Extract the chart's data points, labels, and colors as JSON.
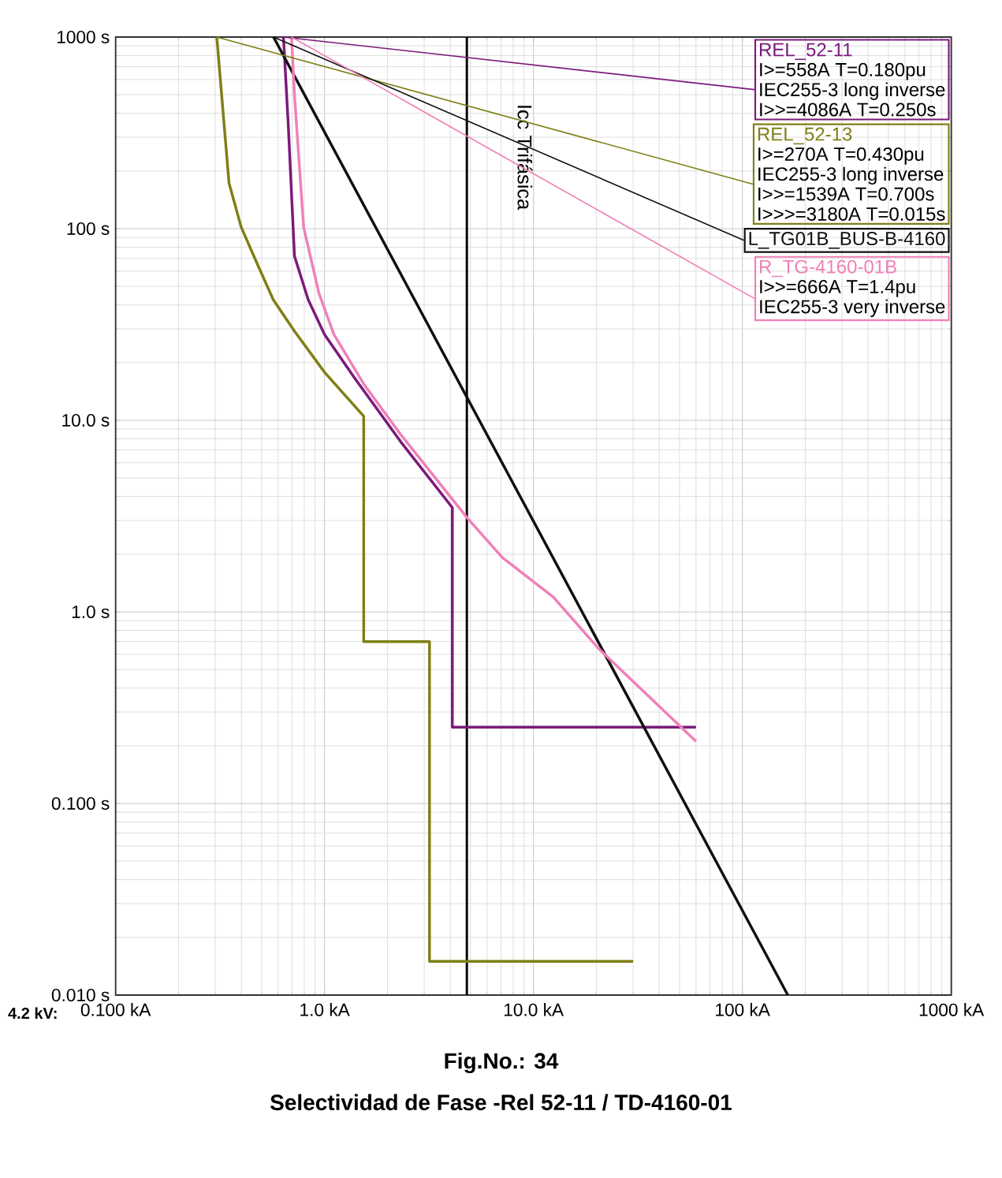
{
  "chart_data": {
    "type": "line",
    "title": "Fig.No.: 34",
    "subtitle": "Selectividad de Fase -Rel 52-11 / TD-4160-01",
    "xlabel": "4.2 kV:",
    "log": "xy",
    "grid": true,
    "marker": "none",
    "line_style": "solid",
    "xlim": [
      0.1,
      1000
    ],
    "ylim": [
      0.01,
      1000
    ],
    "xticks": [
      {
        "value": 0.1,
        "label": "0.100 kA"
      },
      {
        "value": 1,
        "label": "1.0 kA"
      },
      {
        "value": 10,
        "label": "10.0 kA"
      },
      {
        "value": 100,
        "label": "100 kA"
      },
      {
        "value": 1000,
        "label": "1000 kA"
      }
    ],
    "yticks": [
      {
        "value": 0.01,
        "label": "0.010 s"
      },
      {
        "value": 0.1,
        "label": "0.100 s"
      },
      {
        "value": 1,
        "label": "1.0 s"
      },
      {
        "value": 10,
        "label": "10.0 s"
      },
      {
        "value": 100,
        "label": "100 s"
      },
      {
        "value": 1000,
        "label": "1000 s"
      }
    ],
    "series": [
      {
        "name": "REL_52-11",
        "color": "#7b1a7b",
        "x": [
          0.636,
          0.671,
          0.718,
          0.835,
          1.0,
          1.4,
          2.32,
          4.09,
          4.09,
          60
        ],
        "values": [
          1000,
          343,
          72,
          42.6,
          28,
          16.5,
          7.7,
          3.5,
          0.25,
          0.25
        ]
      },
      {
        "name": "REL_52-13",
        "color": "#7f7f16",
        "x": [
          0.305,
          0.349,
          0.399,
          0.472,
          0.568,
          0.718,
          1.0,
          1.54,
          1.54,
          3.18,
          3.18,
          30
        ],
        "values": [
          1000,
          173,
          102,
          67,
          42.6,
          29.2,
          17.8,
          10.5,
          0.7,
          0.7,
          0.015,
          0.015
        ]
      },
      {
        "name": "L_TG01B_BUS-B-4160",
        "color": "#101010",
        "x": [
          0.57,
          165
        ],
        "values": [
          1000,
          0.01
        ]
      },
      {
        "name": "R_TG-4160-01B",
        "color": "#f080b8",
        "x": [
          0.695,
          0.718,
          0.794,
          0.94,
          1.11,
          1.55,
          2.32,
          4.82,
          7.1,
          12.4,
          20.6,
          60
        ],
        "values": [
          1000,
          500,
          102,
          46,
          28,
          15.3,
          8.4,
          3.09,
          1.92,
          1.2,
          0.64,
          0.211
        ]
      }
    ],
    "annotations": [
      {
        "text": "I>=558A T=0.180pu",
        "x": 0.636,
        "y": 1000
      },
      {
        "text": "IEC255-3 long inverse",
        "x": 0.636,
        "y": 1000
      },
      {
        "text": "I>>=4086A T=0.250s",
        "x": 0.636,
        "y": 1000
      },
      {
        "text": "I>=270A T=0.430pu",
        "x": 0.305,
        "y": 1000
      },
      {
        "text": "IEC255-3 long inverse",
        "x": 0.305,
        "y": 1000
      },
      {
        "text": "I>>=1539A T=0.700s",
        "x": 0.305,
        "y": 1000
      },
      {
        "text": "I>>>=3180A T=0.015s",
        "x": 0.305,
        "y": 1000
      },
      {
        "text": "I>>=666A T=1.4pu",
        "x": 0.695,
        "y": 1000
      },
      {
        "text": "IEC255-3 very inverse",
        "x": 0.695,
        "y": 1000
      }
    ],
    "ref_lines": [
      {
        "axis": "x",
        "value": 4.8,
        "label": "Icc Trifásica",
        "color": "#000000",
        "line_style": "solid"
      }
    ]
  }
}
